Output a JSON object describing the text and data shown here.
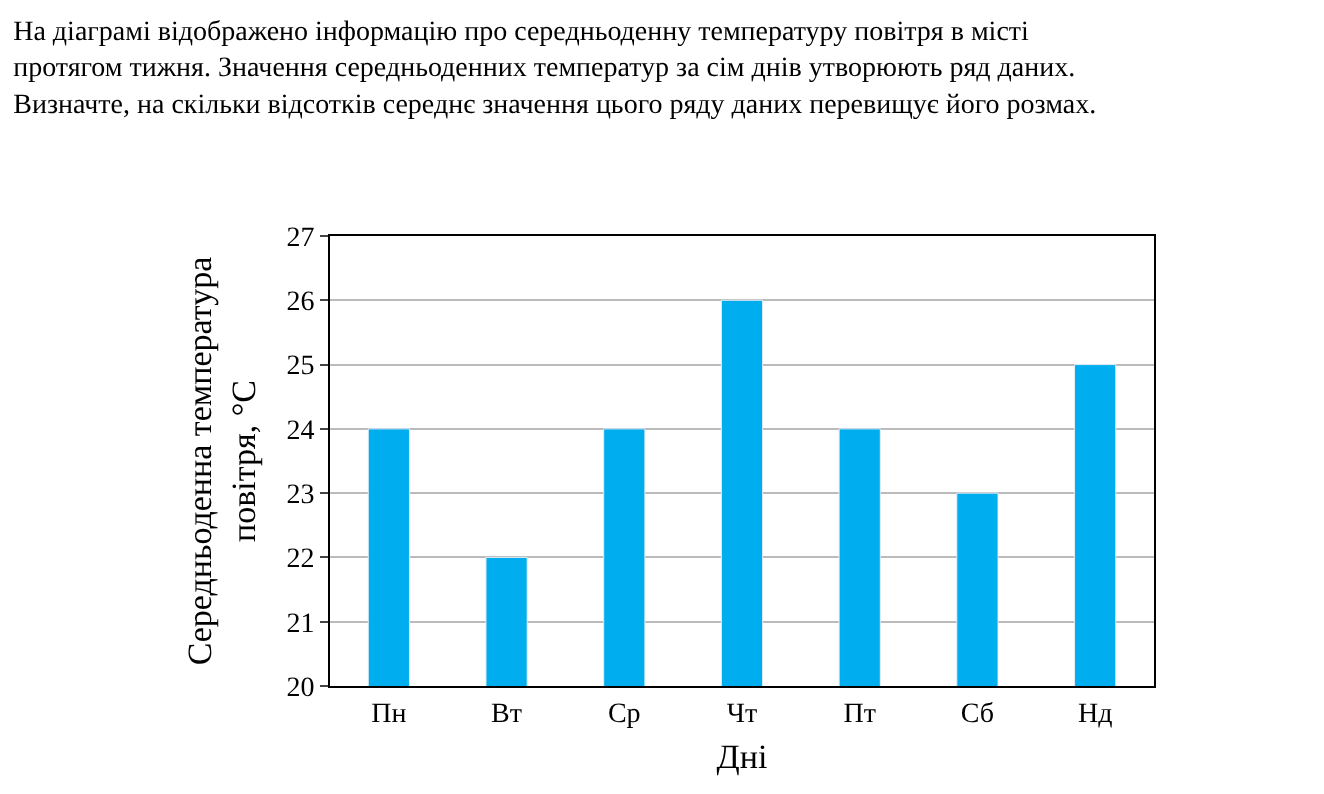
{
  "chart_data": {
    "type": "bar",
    "title": "На діаграмі відображено інформацію про середньоденну температуру повітря в місті протягом тижня. Значення середньоденних температур за сім днів утворюють ряд даних. Визначте, на скільки відсотків середнє значення цього ряду даних перевищує його розмах.",
    "categories": [
      "Пн",
      "Вт",
      "Ср",
      "Чт",
      "Пт",
      "Сб",
      "Нд"
    ],
    "values": [
      24,
      22,
      24,
      26,
      24,
      23,
      25
    ],
    "color": "#00aeef",
    "xlabel": "Дні",
    "ylabel": "Середньоденна температура повітря, °C",
    "ylim": [
      20,
      27
    ],
    "yticks": [
      20,
      21,
      22,
      23,
      24,
      25,
      26,
      27
    ],
    "grid": "y"
  }
}
